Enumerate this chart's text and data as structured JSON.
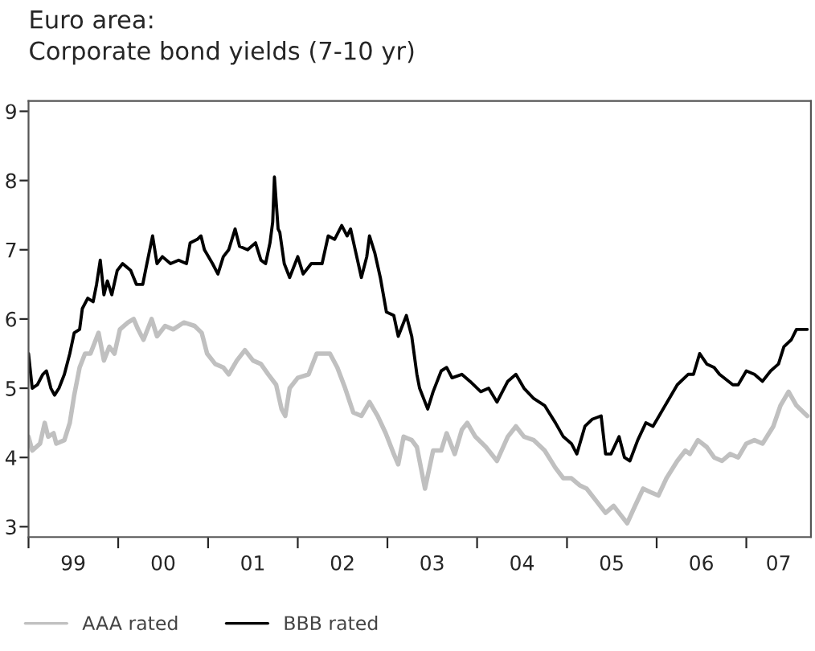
{
  "chart_data": {
    "type": "line",
    "title": "Euro area:\nCorporate bond yields (7-10 yr)",
    "xlim": [
      "1999-01-01",
      "2007-09-21"
    ],
    "ylim": [
      2.85,
      9.15
    ],
    "yticks": [
      3,
      4,
      5,
      6,
      7,
      8,
      9
    ],
    "xticks": [
      {
        "value": "1999-01-01",
        "label": null
      },
      {
        "value": "1999-07-02",
        "label": "99"
      },
      {
        "value": "2000-01-01",
        "label": null
      },
      {
        "value": "2000-07-02",
        "label": "00"
      },
      {
        "value": "2001-01-01",
        "label": null
      },
      {
        "value": "2001-07-02",
        "label": "01"
      },
      {
        "value": "2002-01-01",
        "label": null
      },
      {
        "value": "2002-07-02",
        "label": "02"
      },
      {
        "value": "2003-01-01",
        "label": null
      },
      {
        "value": "2003-07-02",
        "label": "03"
      },
      {
        "value": "2004-01-01",
        "label": null
      },
      {
        "value": "2004-07-02",
        "label": "04"
      },
      {
        "value": "2005-01-01",
        "label": null
      },
      {
        "value": "2005-07-02",
        "label": "05"
      },
      {
        "value": "2006-01-01",
        "label": null
      },
      {
        "value": "2006-07-02",
        "label": "06"
      },
      {
        "value": "2007-01-01",
        "label": null
      },
      {
        "value": "2007-05-12",
        "label": "07"
      }
    ],
    "grid": false,
    "legend": "bottom",
    "marker": "none",
    "line_style": "solid",
    "series": [
      {
        "name": "AAA rated",
        "color": "#c0c0c0",
        "x": [
          "1999-01-01",
          "1999-01-16",
          "1999-02-17",
          "1999-03-08",
          "1999-03-22",
          "1999-04-13",
          "1999-04-24",
          "1999-05-27",
          "1999-06-18",
          "1999-07-06",
          "1999-07-28",
          "1999-08-19",
          "1999-09-10",
          "1999-10-13",
          "1999-11-04",
          "1999-11-26",
          "1999-12-17",
          "2000-01-08",
          "2000-02-10",
          "2000-03-04",
          "2000-03-22",
          "2000-04-13",
          "2000-05-16",
          "2000-06-07",
          "2000-07-10",
          "2000-08-12",
          "2000-09-24",
          "2000-11-07",
          "2000-12-06",
          "2000-12-28",
          "2001-01-30",
          "2001-03-04",
          "2001-03-26",
          "2001-04-28",
          "2001-05-31",
          "2001-07-03",
          "2001-08-04",
          "2001-09-03",
          "2001-10-05",
          "2001-10-27",
          "2001-11-11",
          "2001-11-29",
          "2002-01-01",
          "2002-02-14",
          "2002-03-19",
          "2002-04-10",
          "2002-05-12",
          "2002-06-11",
          "2002-07-13",
          "2002-08-15",
          "2002-09-17",
          "2002-10-20",
          "2002-11-22",
          "2002-12-25",
          "2003-01-27",
          "2003-02-14",
          "2003-03-08",
          "2003-04-10",
          "2003-05-01",
          "2003-06-03",
          "2003-07-06",
          "2003-08-08",
          "2003-08-30",
          "2003-10-02",
          "2003-10-31",
          "2003-11-22",
          "2003-12-25",
          "2004-02-06",
          "2004-03-22",
          "2004-05-05",
          "2004-06-07",
          "2004-07-10",
          "2004-08-19",
          "2004-10-02",
          "2004-11-15",
          "2004-12-17",
          "2005-01-19",
          "2005-02-21",
          "2005-03-22",
          "2005-04-24",
          "2005-06-07",
          "2005-07-10",
          "2005-08-01",
          "2005-09-03",
          "2005-10-05",
          "2005-11-07",
          "2005-12-06",
          "2006-01-08",
          "2006-02-10",
          "2006-03-26",
          "2006-04-28",
          "2006-05-16",
          "2006-06-18",
          "2006-07-24",
          "2006-08-23",
          "2006-09-24",
          "2006-10-27",
          "2006-11-29",
          "2007-01-01",
          "2007-02-03",
          "2007-03-08",
          "2007-04-21",
          "2007-05-20",
          "2007-06-22",
          "2007-07-24",
          "2007-09-06"
        ],
        "values": [
          4.3,
          4.1,
          4.2,
          4.5,
          4.3,
          4.35,
          4.2,
          4.25,
          4.5,
          4.9,
          5.3,
          5.5,
          5.5,
          5.8,
          5.4,
          5.6,
          5.5,
          5.85,
          5.95,
          6.0,
          5.85,
          5.7,
          6.0,
          5.75,
          5.9,
          5.85,
          5.95,
          5.9,
          5.8,
          5.5,
          5.35,
          5.3,
          5.2,
          5.4,
          5.55,
          5.4,
          5.35,
          5.2,
          5.05,
          4.7,
          4.6,
          5.0,
          5.15,
          5.2,
          5.5,
          5.5,
          5.5,
          5.3,
          5.0,
          4.65,
          4.6,
          4.8,
          4.6,
          4.35,
          4.05,
          3.9,
          4.3,
          4.25,
          4.15,
          3.55,
          4.1,
          4.1,
          4.35,
          4.05,
          4.4,
          4.5,
          4.3,
          4.15,
          3.95,
          4.3,
          4.45,
          4.3,
          4.25,
          4.1,
          3.85,
          3.7,
          3.7,
          3.6,
          3.55,
          3.4,
          3.2,
          3.3,
          3.2,
          3.05,
          3.3,
          3.55,
          3.5,
          3.45,
          3.7,
          3.95,
          4.1,
          4.05,
          4.25,
          4.15,
          4.0,
          3.95,
          4.05,
          4.0,
          4.2,
          4.25,
          4.2,
          4.45,
          4.75,
          4.95,
          4.75,
          4.6
        ]
      },
      {
        "name": "BBB rated",
        "color": "#000000",
        "x": [
          "1999-01-01",
          "1999-01-16",
          "1999-02-06",
          "1999-02-28",
          "1999-03-15",
          "1999-04-02",
          "1999-04-17",
          "1999-05-05",
          "1999-05-27",
          "1999-06-18",
          "1999-07-06",
          "1999-07-28",
          "1999-08-08",
          "1999-08-30",
          "1999-09-21",
          "1999-10-05",
          "1999-10-20",
          "1999-11-04",
          "1999-11-18",
          "1999-12-06",
          "1999-12-28",
          "2000-01-19",
          "2000-02-21",
          "2000-03-15",
          "2000-04-10",
          "2000-04-24",
          "2000-05-20",
          "2000-06-07",
          "2000-06-29",
          "2000-08-01",
          "2000-09-03",
          "2000-10-05",
          "2000-10-20",
          "2000-11-18",
          "2000-12-03",
          "2000-12-17",
          "2001-01-19",
          "2001-02-10",
          "2001-03-04",
          "2001-03-26",
          "2001-04-21",
          "2001-05-09",
          "2001-06-11",
          "2001-07-13",
          "2001-08-04",
          "2001-08-23",
          "2001-09-10",
          "2001-09-21",
          "2001-09-28",
          "2001-10-13",
          "2001-10-20",
          "2001-11-07",
          "2001-11-29",
          "2002-01-01",
          "2002-01-23",
          "2002-02-25",
          "2002-04-10",
          "2002-05-05",
          "2002-05-31",
          "2002-06-29",
          "2002-07-21",
          "2002-08-04",
          "2002-08-26",
          "2002-09-17",
          "2002-10-09",
          "2002-10-20",
          "2002-11-11",
          "2002-12-03",
          "2002-12-28",
          "2003-01-27",
          "2003-02-14",
          "2003-03-19",
          "2003-04-10",
          "2003-05-01",
          "2003-05-12",
          "2003-06-14",
          "2003-07-06",
          "2003-08-08",
          "2003-08-30",
          "2003-09-21",
          "2003-10-31",
          "2003-12-03",
          "2004-01-16",
          "2004-02-17",
          "2004-03-22",
          "2004-05-05",
          "2004-06-07",
          "2004-07-10",
          "2004-08-19",
          "2004-10-02",
          "2004-11-15",
          "2004-12-17",
          "2005-01-19",
          "2005-02-10",
          "2005-03-15",
          "2005-04-13",
          "2005-05-20",
          "2005-06-07",
          "2005-06-29",
          "2005-08-01",
          "2005-08-23",
          "2005-09-14",
          "2005-10-16",
          "2005-11-18",
          "2005-12-17",
          "2006-01-19",
          "2006-02-21",
          "2006-03-26",
          "2006-05-09",
          "2006-05-31",
          "2006-06-25",
          "2006-07-24",
          "2006-08-23",
          "2006-09-14",
          "2006-11-07",
          "2006-11-29",
          "2007-01-01",
          "2007-02-03",
          "2007-03-08",
          "2007-04-10",
          "2007-05-12",
          "2007-06-03",
          "2007-07-03",
          "2007-07-24",
          "2007-09-06"
        ],
        "values": [
          5.5,
          5.0,
          5.05,
          5.2,
          5.25,
          5.0,
          4.9,
          5.0,
          5.2,
          5.5,
          5.8,
          5.85,
          6.15,
          6.3,
          6.25,
          6.5,
          6.85,
          6.35,
          6.55,
          6.35,
          6.7,
          6.8,
          6.7,
          6.5,
          6.5,
          6.75,
          7.2,
          6.8,
          6.9,
          6.8,
          6.85,
          6.8,
          7.1,
          7.15,
          7.2,
          7.0,
          6.8,
          6.65,
          6.9,
          7.0,
          7.3,
          7.05,
          7.0,
          7.1,
          6.85,
          6.8,
          7.1,
          7.4,
          8.05,
          7.3,
          7.25,
          6.8,
          6.6,
          6.9,
          6.65,
          6.8,
          6.8,
          7.2,
          7.15,
          7.35,
          7.2,
          7.3,
          6.95,
          6.6,
          6.9,
          7.2,
          6.95,
          6.6,
          6.1,
          6.05,
          5.75,
          6.05,
          5.75,
          5.2,
          5.0,
          4.7,
          4.95,
          5.25,
          5.3,
          5.15,
          5.2,
          5.1,
          4.95,
          5.0,
          4.8,
          5.1,
          5.2,
          5.0,
          4.85,
          4.75,
          4.5,
          4.3,
          4.2,
          4.05,
          4.45,
          4.55,
          4.6,
          4.05,
          4.05,
          4.3,
          4.0,
          3.95,
          4.25,
          4.5,
          4.45,
          4.65,
          4.85,
          5.05,
          5.2,
          5.2,
          5.5,
          5.35,
          5.3,
          5.2,
          5.05,
          5.05,
          5.25,
          5.2,
          5.1,
          5.25,
          5.35,
          5.6,
          5.7,
          5.85,
          5.85
        ]
      }
    ]
  }
}
